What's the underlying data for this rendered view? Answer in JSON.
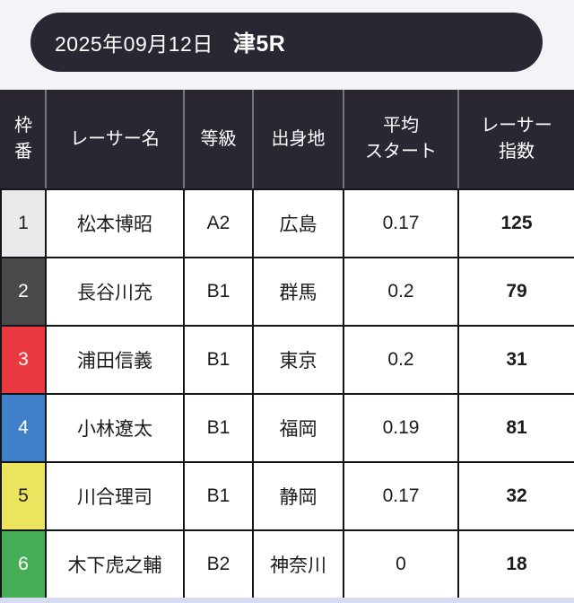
{
  "page": {
    "background": "#f4f4f8",
    "bottom_strip_color": "#d8dcf2"
  },
  "banner": {
    "date": "2025年09月12日",
    "race": "津5R",
    "background": "#2a2733",
    "text_color": "#ffffff"
  },
  "table": {
    "header_background": "#2a2733",
    "border_color": "#14141b",
    "columns": [
      {
        "id": "waku",
        "label": "枠\n番"
      },
      {
        "id": "name",
        "label": "レーサー名"
      },
      {
        "id": "grade",
        "label": "等級"
      },
      {
        "id": "origin",
        "label": "出身地"
      },
      {
        "id": "avg_start",
        "label": "平均\nスタート"
      },
      {
        "id": "index",
        "label": "レーサー\n指数"
      }
    ],
    "rows": [
      {
        "waku": "1",
        "name": "松本博昭",
        "grade": "A2",
        "origin": "広島",
        "avg_start": "0.17",
        "index": "125",
        "waku_bg": "#eaeaea",
        "waku_color": "#222222"
      },
      {
        "waku": "2",
        "name": "長谷川充",
        "grade": "B1",
        "origin": "群馬",
        "avg_start": "0.2",
        "index": "79",
        "waku_bg": "#4a4a4a",
        "waku_color": "#ffffff"
      },
      {
        "waku": "3",
        "name": "浦田信義",
        "grade": "B1",
        "origin": "東京",
        "avg_start": "0.2",
        "index": "31",
        "waku_bg": "#ea3a40",
        "waku_color": "#ffffff"
      },
      {
        "waku": "4",
        "name": "小林遼太",
        "grade": "B1",
        "origin": "福岡",
        "avg_start": "0.19",
        "index": "81",
        "waku_bg": "#3f80c8",
        "waku_color": "#ffffff"
      },
      {
        "waku": "5",
        "name": "川合理司",
        "grade": "B1",
        "origin": "静岡",
        "avg_start": "0.17",
        "index": "32",
        "waku_bg": "#ece45e",
        "waku_color": "#222222"
      },
      {
        "waku": "6",
        "name": "木下虎之輔",
        "grade": "B2",
        "origin": "神奈川",
        "avg_start": "0",
        "index": "18",
        "waku_bg": "#44ad56",
        "waku_color": "#ffffff"
      }
    ]
  }
}
